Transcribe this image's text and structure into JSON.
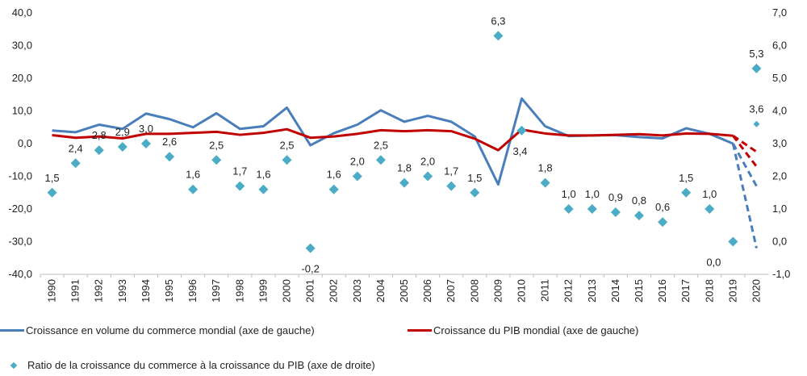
{
  "chart_data": {
    "type": "line",
    "categories": [
      "1990",
      "1991",
      "1992",
      "1993",
      "1994",
      "1995",
      "1996",
      "1997",
      "1998",
      "1999",
      "2000",
      "2001",
      "2002",
      "2003",
      "2004",
      "2005",
      "2006",
      "2007",
      "2008",
      "2009",
      "2010",
      "2011",
      "2012",
      "2013",
      "2014",
      "2015",
      "2016",
      "2017",
      "2018",
      "2019",
      "2020"
    ],
    "ylim_left": [
      -40,
      40
    ],
    "ylim_right": [
      -1,
      7
    ],
    "left_ticks": [
      "40,0",
      "30,0",
      "20,0",
      "10,0",
      "0,0",
      "-10,0",
      "-20,0",
      "-30,0",
      "-40,0"
    ],
    "right_ticks": [
      "7,0",
      "6,0",
      "5,0",
      "4,0",
      "3,0",
      "2,0",
      "1,0",
      "0,0",
      "-1,0"
    ],
    "grid": false,
    "legend_position": "bottom",
    "series": [
      {
        "name": "Croissance en volume du commerce mondial (axe de gauche)",
        "axis": "left",
        "style": "line",
        "color": "#4A7EBB",
        "values": [
          4.0,
          3.5,
          5.8,
          4.5,
          9.2,
          7.5,
          5.0,
          9.3,
          4.5,
          5.3,
          11.0,
          -0.5,
          3.2,
          5.8,
          10.2,
          6.7,
          8.5,
          6.7,
          2.2,
          -12.5,
          13.8,
          5.3,
          2.3,
          2.5,
          2.6,
          2.0,
          1.6,
          4.7,
          3.0,
          0.0,
          null
        ],
        "projection": {
          "from": "2019",
          "to": "2020",
          "values": [
            -13.0,
            -32.0
          ]
        }
      },
      {
        "name": "Croissance du PIB mondial (axe de gauche)",
        "axis": "left",
        "style": "line",
        "color": "#C00000",
        "values": [
          2.6,
          1.8,
          2.2,
          1.6,
          3.0,
          3.0,
          3.3,
          3.6,
          2.7,
          3.3,
          4.4,
          1.8,
          2.2,
          3.0,
          4.1,
          3.8,
          4.1,
          3.8,
          1.5,
          -2.0,
          4.3,
          3.1,
          2.5,
          2.5,
          2.7,
          2.9,
          2.5,
          3.1,
          3.0,
          2.4,
          null
        ],
        "projection": {
          "from": "2019",
          "to": "2020",
          "values": [
            -2.5,
            -7.0
          ]
        }
      },
      {
        "name": "Ratio de la croissance du commerce à la croissance du PIB (axe de droite)",
        "axis": "right",
        "style": "scatter",
        "color": "#4BACC6",
        "values": [
          1.5,
          2.4,
          2.8,
          2.9,
          3.0,
          2.6,
          1.6,
          2.5,
          1.7,
          1.6,
          2.5,
          -0.2,
          1.6,
          2.0,
          2.5,
          1.8,
          2.0,
          1.7,
          1.5,
          6.3,
          3.4,
          1.8,
          1.0,
          1.0,
          0.9,
          0.8,
          0.6,
          1.5,
          1.0,
          0.0,
          5.3
        ],
        "labels": [
          "1,5",
          "2,4",
          "2,8",
          "2,9",
          "3,0",
          "2,6",
          "1,6",
          "2,5",
          "1,7",
          "1,6",
          "2,5",
          "-0,2",
          "1,6",
          "2,0",
          "2,5",
          "1,8",
          "2,0",
          "1,7",
          "1,5",
          "6,3",
          "3,4",
          "1,8",
          "1,0",
          "1,0",
          "0,9",
          "0,8",
          "0,6",
          "1,5",
          "1,0",
          "0,0",
          "5,3"
        ],
        "extra_points": [
          {
            "x": "2020",
            "value": 3.6,
            "label": "3,6"
          }
        ]
      }
    ]
  }
}
